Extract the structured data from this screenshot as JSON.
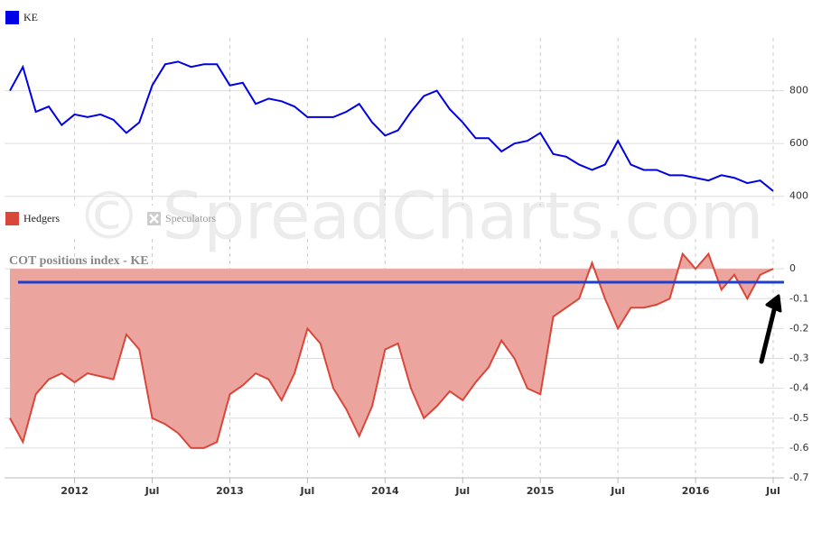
{
  "watermark": "© SpreadCharts.com",
  "chart_data": [
    {
      "type": "line",
      "series": [
        {
          "name": "KE",
          "color": "#0000e6",
          "values": [
            800,
            890,
            720,
            740,
            670,
            710,
            700,
            710,
            690,
            640,
            680,
            820,
            900,
            910,
            890,
            900,
            900,
            820,
            830,
            750,
            770,
            760,
            740,
            700,
            700,
            700,
            720,
            750,
            680,
            630,
            650,
            720,
            780,
            800,
            730,
            680,
            620,
            620,
            570,
            600,
            610,
            640,
            560,
            550,
            520,
            500,
            520,
            610,
            520,
            500,
            500,
            480,
            480,
            470,
            460,
            480,
            470,
            450,
            460,
            420
          ]
        }
      ],
      "x": [
        "2011-08",
        "2011-09",
        "2011-10",
        "2011-11",
        "2011-12",
        "2012-01",
        "2012-02",
        "2012-03",
        "2012-04",
        "2012-05",
        "2012-06",
        "2012-07",
        "2012-08",
        "2012-09",
        "2012-10",
        "2012-11",
        "2012-12",
        "2013-01",
        "2013-02",
        "2013-03",
        "2013-04",
        "2013-05",
        "2013-06",
        "2013-07",
        "2013-08",
        "2013-09",
        "2013-10",
        "2013-11",
        "2013-12",
        "2014-01",
        "2014-02",
        "2014-03",
        "2014-04",
        "2014-05",
        "2014-06",
        "2014-07",
        "2014-08",
        "2014-09",
        "2014-10",
        "2014-11",
        "2014-12",
        "2015-01",
        "2015-02",
        "2015-03",
        "2015-04",
        "2015-05",
        "2015-06",
        "2015-07",
        "2015-08",
        "2015-09",
        "2015-10",
        "2015-11",
        "2015-12",
        "2016-01",
        "2016-02",
        "2016-03",
        "2016-04",
        "2016-05",
        "2016-06",
        "2016-07"
      ],
      "ylim": [
        365,
        1000
      ],
      "yticks": [
        400,
        600,
        800
      ],
      "grid": true
    },
    {
      "type": "area",
      "title": "COT positions index - KE",
      "series": [
        {
          "name": "Hedgers",
          "color": "#d9473a",
          "fill": "#eba59e",
          "values": [
            -0.5,
            -0.58,
            -0.42,
            -0.37,
            -0.35,
            -0.38,
            -0.35,
            -0.36,
            -0.37,
            -0.22,
            -0.27,
            -0.5,
            -0.52,
            -0.55,
            -0.6,
            -0.6,
            -0.58,
            -0.42,
            -0.39,
            -0.35,
            -0.37,
            -0.44,
            -0.35,
            -0.2,
            -0.25,
            -0.4,
            -0.47,
            -0.56,
            -0.46,
            -0.27,
            -0.25,
            -0.4,
            -0.5,
            -0.46,
            -0.41,
            -0.44,
            -0.38,
            -0.33,
            -0.24,
            -0.3,
            -0.4,
            -0.42,
            -0.16,
            -0.13,
            -0.1,
            0.02,
            -0.1,
            -0.2,
            -0.13,
            -0.13,
            -0.12,
            -0.1,
            0.05,
            0.0,
            0.05,
            -0.07,
            -0.02,
            -0.1,
            -0.02,
            0.0
          ]
        }
      ],
      "inactive_legend": [
        "Speculators"
      ],
      "reference_line": {
        "value": -0.045,
        "color": "#1f3fcf"
      },
      "xlim": [
        "2011-08",
        "2016-07"
      ],
      "xticks": [
        {
          "value": "2012-01",
          "label": "2012"
        },
        {
          "value": "2012-07",
          "label": "Jul"
        },
        {
          "value": "2013-01",
          "label": "2013"
        },
        {
          "value": "2013-07",
          "label": "Jul"
        },
        {
          "value": "2014-01",
          "label": "2014"
        },
        {
          "value": "2014-07",
          "label": "Jul"
        },
        {
          "value": "2015-01",
          "label": "2015"
        },
        {
          "value": "2015-07",
          "label": "Jul"
        },
        {
          "value": "2016-01",
          "label": "2016"
        },
        {
          "value": "2016-07",
          "label": "Jul"
        }
      ],
      "ylim": [
        -0.7,
        0.1
      ],
      "yticks": [
        0,
        -0.1,
        -0.2,
        -0.3,
        -0.4,
        -0.5,
        -0.6,
        -0.7
      ],
      "grid": true
    }
  ]
}
